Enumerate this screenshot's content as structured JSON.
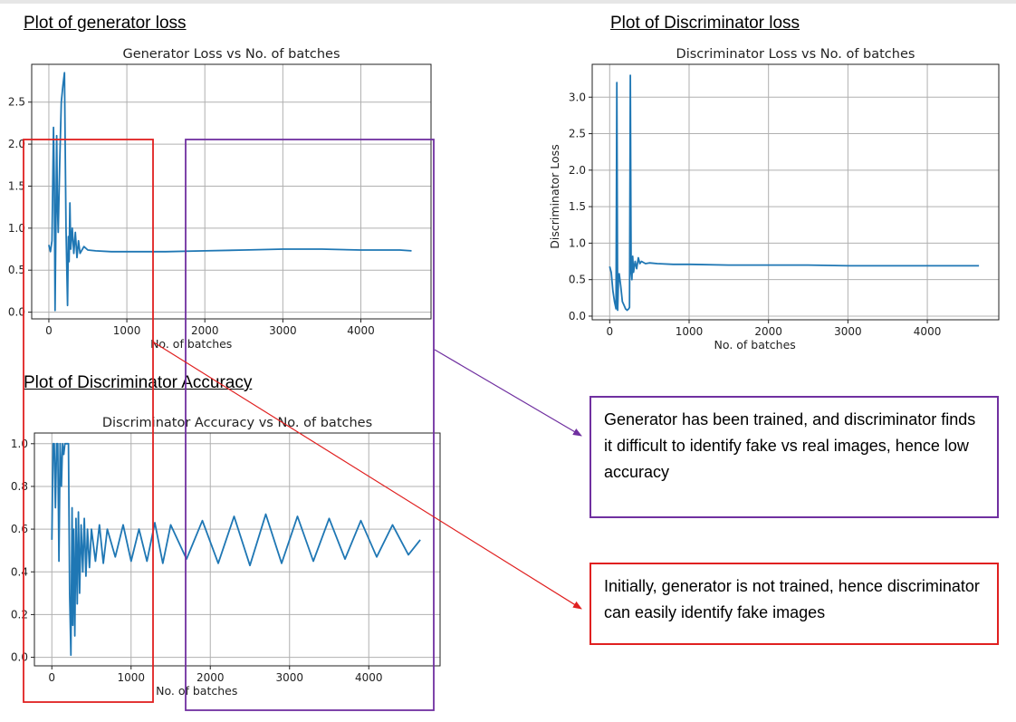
{
  "headings": {
    "generator": "Plot of generator loss",
    "discriminator_loss": "Plot of Discriminator loss",
    "discriminator_accuracy": "Plot of Discriminator Accuracy"
  },
  "notes": {
    "purple": "Generator has been trained, and discriminator finds it difficult to identify fake vs real images, hence low accuracy",
    "red": "Initially, generator is not trained, hence discriminator can easily identify fake images"
  },
  "colors": {
    "line": "#1f77b4",
    "red": "#e02020",
    "purple": "#7030a0",
    "grid": "#b0b0b0"
  },
  "chart_data": [
    {
      "type": "line",
      "title": "Generator Loss vs No. of batches",
      "xlabel": "No. of batches",
      "ylabel": "",
      "xlim": [
        -220,
        4900
      ],
      "ylim": [
        -0.08,
        2.95
      ],
      "xticks": [
        0,
        1000,
        2000,
        3000,
        4000
      ],
      "yticks": [
        0.0,
        0.5,
        1.0,
        1.5,
        2.0,
        2.5
      ],
      "ytick_labels": [
        "0.0",
        "0.5",
        "1.0",
        "1.5",
        "2.0",
        "2.5"
      ],
      "grid": true,
      "series": [
        {
          "x": [
            0,
            20,
            40,
            60,
            70,
            80,
            90,
            100,
            110,
            120,
            140,
            160,
            180,
            200,
            220,
            240,
            250,
            260,
            270,
            280,
            300,
            320,
            340,
            360,
            380,
            400,
            450,
            500,
            600,
            800,
            1000,
            1500,
            2000,
            2500,
            3000,
            3500,
            4000,
            4500,
            4650
          ],
          "y": [
            0.8,
            0.72,
            0.85,
            2.2,
            1.5,
            0.02,
            1.0,
            2.1,
            1.3,
            0.95,
            1.8,
            2.5,
            2.7,
            2.85,
            1.0,
            0.08,
            0.9,
            0.6,
            1.3,
            0.75,
            1.0,
            0.7,
            0.95,
            0.65,
            0.85,
            0.7,
            0.78,
            0.74,
            0.73,
            0.72,
            0.72,
            0.72,
            0.73,
            0.74,
            0.75,
            0.75,
            0.74,
            0.74,
            0.73
          ]
        }
      ]
    },
    {
      "type": "line",
      "title": "Discriminator Loss vs No. of batches",
      "xlabel": "No. of batches",
      "ylabel": "Discriminator Loss",
      "xlim": [
        -220,
        4900
      ],
      "ylim": [
        -0.05,
        3.45
      ],
      "xticks": [
        0,
        1000,
        2000,
        3000,
        4000
      ],
      "yticks": [
        0.0,
        0.5,
        1.0,
        1.5,
        2.0,
        2.5,
        3.0
      ],
      "ytick_labels": [
        "0.0",
        "0.5",
        "1.0",
        "1.5",
        "2.0",
        "2.5",
        "3.0"
      ],
      "grid": true,
      "series": [
        {
          "x": [
            0,
            20,
            40,
            60,
            80,
            90,
            100,
            110,
            120,
            140,
            160,
            180,
            200,
            220,
            240,
            250,
            260,
            270,
            280,
            290,
            300,
            320,
            340,
            360,
            380,
            400,
            450,
            500,
            600,
            800,
            1000,
            1500,
            2000,
            2500,
            3000,
            3500,
            4000,
            4500,
            4650
          ],
          "y": [
            0.68,
            0.6,
            0.35,
            0.2,
            0.1,
            3.2,
            0.08,
            0.45,
            0.58,
            0.4,
            0.2,
            0.15,
            0.1,
            0.08,
            0.1,
            0.12,
            3.3,
            0.6,
            0.5,
            0.82,
            0.6,
            0.75,
            0.65,
            0.8,
            0.72,
            0.75,
            0.72,
            0.73,
            0.72,
            0.71,
            0.71,
            0.7,
            0.7,
            0.7,
            0.69,
            0.69,
            0.69,
            0.69,
            0.69
          ]
        }
      ]
    },
    {
      "type": "line",
      "title": "Discriminator Accuracy vs No. of batches",
      "xlabel": "No. of batches",
      "ylabel": "",
      "xlim": [
        -220,
        4900
      ],
      "ylim": [
        -0.04,
        1.05
      ],
      "xticks": [
        0,
        1000,
        2000,
        3000,
        4000
      ],
      "yticks": [
        0.0,
        0.2,
        0.4,
        0.6,
        0.8,
        1.0
      ],
      "ytick_labels": [
        "0.0",
        "0.2",
        "0.4",
        "0.6",
        "0.8",
        "1.0"
      ],
      "grid": true,
      "series": [
        {
          "x": [
            0,
            15,
            30,
            45,
            60,
            75,
            90,
            105,
            120,
            135,
            150,
            165,
            180,
            195,
            210,
            225,
            240,
            255,
            265,
            275,
            290,
            305,
            320,
            335,
            350,
            370,
            390,
            410,
            430,
            450,
            475,
            500,
            550,
            600,
            650,
            700,
            800,
            900,
            1000,
            1100,
            1200,
            1300,
            1400,
            1500,
            1700,
            1900,
            2100,
            2300,
            2500,
            2700,
            2900,
            3100,
            3300,
            3500,
            3700,
            3900,
            4100,
            4300,
            4500,
            4650
          ],
          "y": [
            0.55,
            1.0,
            1.0,
            0.7,
            1.0,
            1.0,
            0.45,
            1.0,
            0.8,
            1.0,
            0.95,
            1.0,
            1.0,
            1.0,
            1.0,
            0.3,
            0.01,
            0.7,
            0.15,
            0.6,
            0.1,
            0.65,
            0.25,
            0.68,
            0.3,
            0.62,
            0.4,
            0.65,
            0.38,
            0.6,
            0.42,
            0.6,
            0.45,
            0.62,
            0.44,
            0.6,
            0.47,
            0.62,
            0.45,
            0.6,
            0.45,
            0.63,
            0.44,
            0.62,
            0.46,
            0.64,
            0.44,
            0.66,
            0.43,
            0.67,
            0.44,
            0.66,
            0.45,
            0.65,
            0.46,
            0.64,
            0.47,
            0.62,
            0.48,
            0.55
          ]
        }
      ]
    }
  ]
}
